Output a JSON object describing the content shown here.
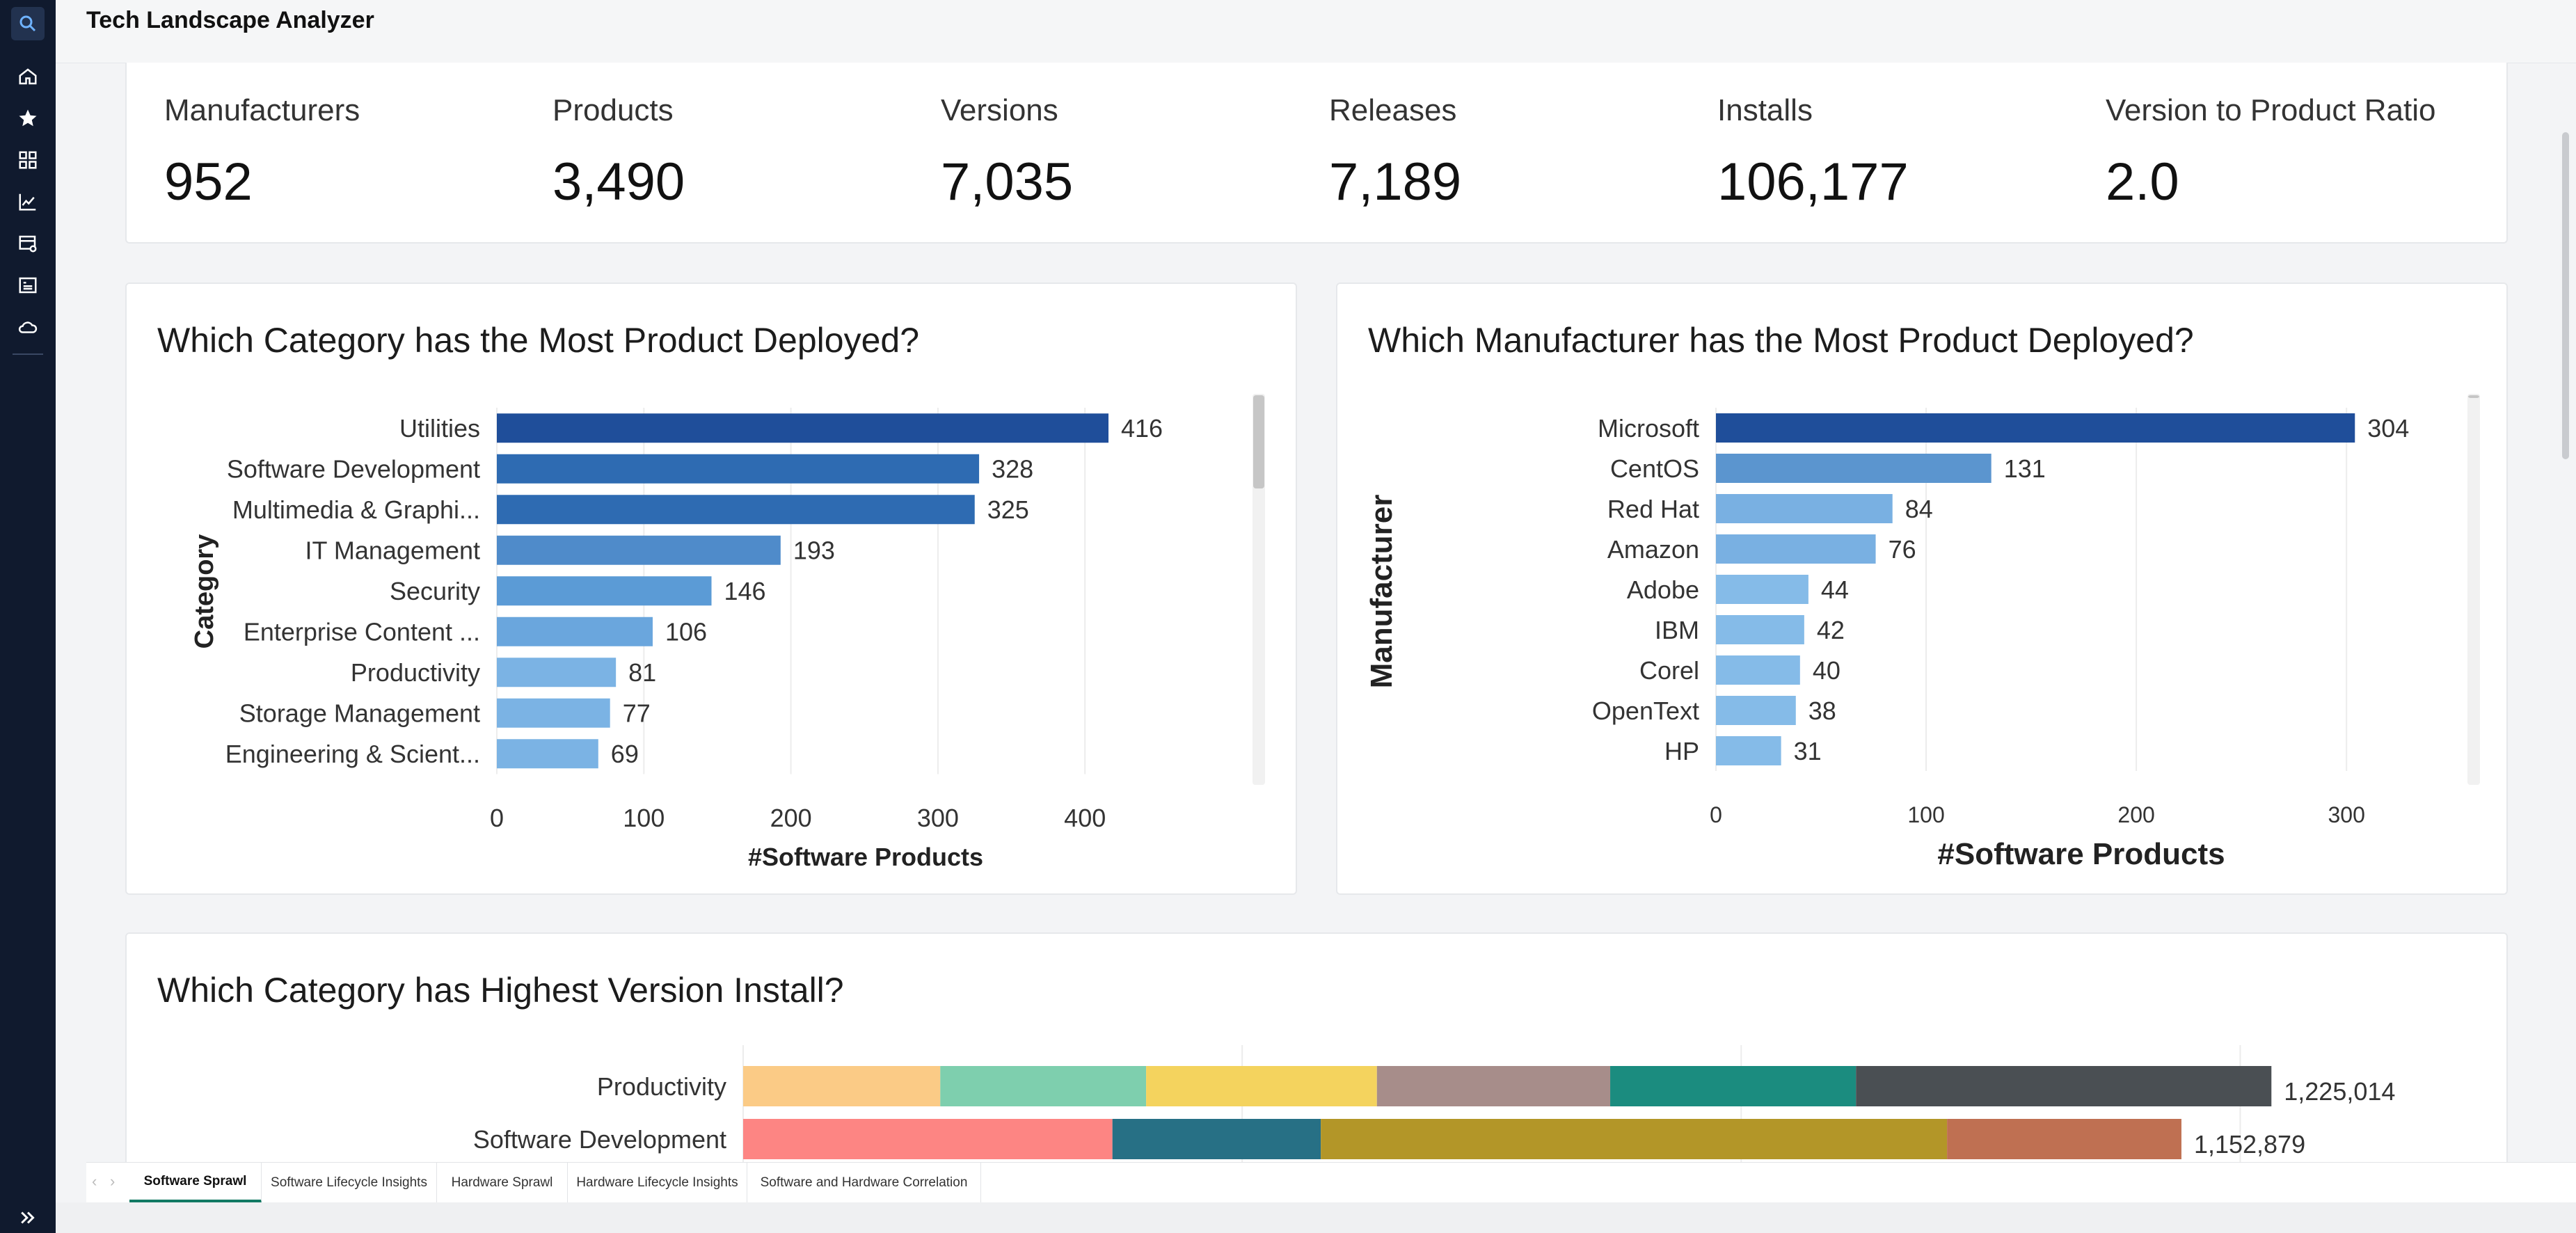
{
  "app": {
    "title": "Tech Landscape Analyzer"
  },
  "rail": {
    "icons": [
      "search-icon",
      "home-icon",
      "favorites-star-icon",
      "apps-grid-icon",
      "metrics-icon",
      "workspace-icon",
      "browse-icon",
      "onelake-icon"
    ]
  },
  "kpis": [
    {
      "label": "Manufacturers",
      "value": "952"
    },
    {
      "label": "Products",
      "value": "3,490"
    },
    {
      "label": "Versions",
      "value": "7,035"
    },
    {
      "label": "Releases",
      "value": "7,189"
    },
    {
      "label": "Installs",
      "value": "106,177"
    },
    {
      "label": "Version to Product Ratio",
      "value": "2.0"
    }
  ],
  "chart_data": [
    {
      "type": "bar",
      "orientation": "horizontal",
      "title": "Which Category has the Most Product Deployed?",
      "xlabel": "#Software Products",
      "ylabel": "Category",
      "categories": [
        "Utilities",
        "Software Development",
        "Multimedia & Graphi...",
        "IT Management",
        "Security",
        "Enterprise Content ...",
        "Productivity",
        "Storage Management",
        "Engineering & Scient..."
      ],
      "values": [
        416,
        328,
        325,
        193,
        146,
        106,
        81,
        77,
        69
      ],
      "xlim": [
        0,
        460
      ],
      "xticks": [
        "0",
        "100",
        "200",
        "300",
        "400"
      ],
      "xtick_values": [
        0,
        100,
        200,
        300,
        400
      ],
      "colors": [
        "#1f4e9a",
        "#2e6bb2",
        "#2e6bb2",
        "#4f8bca",
        "#5b9bd6",
        "#6aa6dd",
        "#7bb3e4",
        "#7bb3e4",
        "#7bb3e4"
      ],
      "grid": true,
      "data_labels": true
    },
    {
      "type": "bar",
      "orientation": "horizontal",
      "title": "Which Manufacturer has the Most Product Deployed?",
      "xlabel": "#Software Products",
      "ylabel": "Manufacturer",
      "categories": [
        "Microsoft",
        "CentOS",
        "Red Hat",
        "Amazon",
        "Adobe",
        "IBM",
        "Corel",
        "OpenText",
        "HP"
      ],
      "values": [
        304,
        131,
        84,
        76,
        44,
        42,
        40,
        38,
        31
      ],
      "xlim": [
        0,
        340
      ],
      "xticks": [
        "0",
        "100",
        "200",
        "300"
      ],
      "xtick_values": [
        0,
        100,
        200,
        300
      ],
      "colors": [
        "#1f4e9a",
        "#5b95cf",
        "#79b0e2",
        "#79b0e2",
        "#85bbe8",
        "#85bbe8",
        "#85bbe8",
        "#85bbe8",
        "#85bbe8"
      ],
      "grid": true,
      "data_labels": true
    },
    {
      "type": "bar",
      "orientation": "horizontal",
      "stacked": true,
      "title": "Which Category has Highest Version Install?",
      "categories": [
        "Productivity",
        "Software Development"
      ],
      "totals": [
        "1,225,014",
        "1,152,879"
      ],
      "total_values": [
        1225014,
        1152879
      ],
      "segments": [
        [
          {
            "value": 158000,
            "color": "#fbcb86"
          },
          {
            "value": 165000,
            "color": "#7ecfae"
          },
          {
            "value": 185000,
            "color": "#f4d35e"
          },
          {
            "value": 187000,
            "color": "#a78d8a"
          },
          {
            "value": 197000,
            "color": "#1b8c7f"
          },
          {
            "value": 333014,
            "color": "#4a4f53"
          }
        ],
        [
          {
            "value": 296000,
            "color": "#fd8583"
          },
          {
            "value": 167000,
            "color": "#277085"
          },
          {
            "value": 502000,
            "color": "#b39628"
          },
          {
            "value": 187879,
            "color": "#bf7052"
          }
        ]
      ],
      "xlim": [
        0,
        1400000
      ],
      "grid": true,
      "data_labels": true
    }
  ],
  "tabs": [
    {
      "label": "Software Sprawl",
      "active": true
    },
    {
      "label": "Software Lifecycle Insights",
      "active": false
    },
    {
      "label": "Hardware Sprawl",
      "active": false
    },
    {
      "label": "Hardware Lifecycle Insights",
      "active": false
    },
    {
      "label": "Software and Hardware Correlation",
      "active": false
    }
  ],
  "colors": {
    "rail_bg": "#101a2e",
    "accent_tab": "#127a64"
  }
}
